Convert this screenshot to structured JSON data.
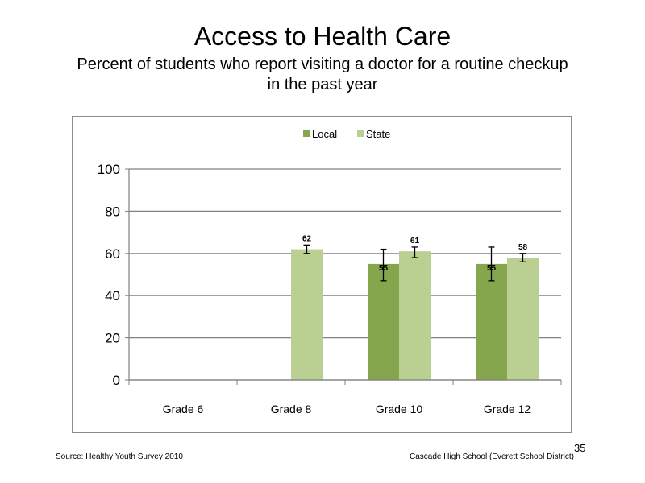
{
  "title": "Access to Health Care",
  "subtitle": "Percent of students who report visiting a doctor for a routine checkup in the past year",
  "footer": {
    "source": "Source: Healthy Youth Survey 2010",
    "school": "Cascade High School (Everett School District)",
    "page_number": "35"
  },
  "colors": {
    "local": "#86a64e",
    "state": "#b9d092",
    "axis": "#808080",
    "grid": "#808080"
  },
  "chart_data": {
    "type": "bar",
    "categories": [
      "Grade 6",
      "Grade 8",
      "Grade 10",
      "Grade 12"
    ],
    "series": [
      {
        "name": "Local",
        "values": [
          null,
          null,
          55,
          55
        ],
        "error_low": [
          null,
          null,
          47,
          47
        ],
        "error_high": [
          null,
          null,
          62,
          63
        ]
      },
      {
        "name": "State",
        "values": [
          null,
          62,
          61,
          58
        ],
        "error_low": [
          null,
          60,
          58,
          56
        ],
        "error_high": [
          null,
          64,
          63,
          60
        ]
      }
    ],
    "data_labels": [
      [
        null,
        null,
        "55",
        "55"
      ],
      [
        null,
        "62",
        "61",
        "58"
      ]
    ],
    "ylim": [
      0,
      100
    ],
    "yticks": [
      0,
      20,
      40,
      60,
      80,
      100
    ],
    "grid": true,
    "legend": "top-center",
    "xlabel": "",
    "ylabel": ""
  }
}
